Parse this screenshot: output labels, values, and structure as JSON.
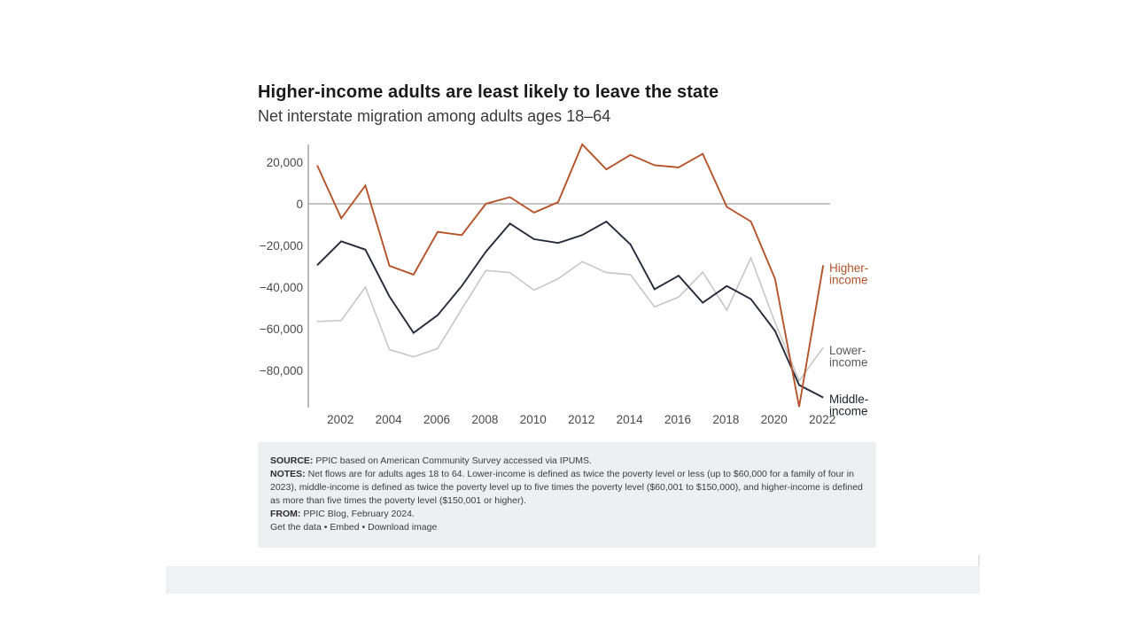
{
  "chart_data": {
    "type": "line",
    "title": "Higher-income adults are least likely to leave the state",
    "subtitle": "Net interstate migration among adults ages 18–64",
    "xlabel": "",
    "ylabel": "",
    "x": [
      2001,
      2002,
      2003,
      2004,
      2005,
      2006,
      2007,
      2008,
      2009,
      2010,
      2011,
      2012,
      2013,
      2014,
      2015,
      2016,
      2017,
      2018,
      2019,
      2020,
      2021,
      2022
    ],
    "x_ticks": [
      "2002",
      "2004",
      "2006",
      "2008",
      "2010",
      "2012",
      "2014",
      "2016",
      "2018",
      "2020",
      "2022"
    ],
    "y_ticks": [
      "20,000",
      "0",
      "−20,000",
      "−40,000",
      "−60,000",
      "−80,000"
    ],
    "y_tick_values": [
      20000,
      0,
      -20000,
      -40000,
      -60000,
      -80000
    ],
    "ylim": [
      -98000,
      29000
    ],
    "grid": false,
    "zero_line": true,
    "series": [
      {
        "name": "Higher-income",
        "color": "#b5532b",
        "values": [
          18500,
          -7000,
          8800,
          -29800,
          -34000,
          -13500,
          -15000,
          0,
          3200,
          -4200,
          800,
          28500,
          16500,
          23500,
          18500,
          17500,
          24000,
          -1500,
          -8500,
          -36000,
          -97500,
          -29500
        ]
      },
      {
        "name": "Lower-income",
        "color": "#c6c6c6",
        "values": [
          -56500,
          -56000,
          -40000,
          -70000,
          -73500,
          -69500,
          -50500,
          -32000,
          -33000,
          -41500,
          -36000,
          -27800,
          -33000,
          -34000,
          -49500,
          -44800,
          -32800,
          -51000,
          -26000,
          -57000,
          -85000,
          -69000
        ]
      },
      {
        "name": "Middle-income",
        "color": "#252a3a",
        "values": [
          -29500,
          -18000,
          -22000,
          -44500,
          -62000,
          -53500,
          -39500,
          -23000,
          -9500,
          -17000,
          -18800,
          -15000,
          -8500,
          -19500,
          -41000,
          -34500,
          -47500,
          -39500,
          -45800,
          -61000,
          -87000,
          -93000
        ]
      }
    ]
  },
  "notes": {
    "source_label": "SOURCE:",
    "source_text": "PPIC based on American Community Survey accessed via IPUMS.",
    "notes_label": "NOTES:",
    "notes_text": "Net flows are for adults ages 18 to 64. Lower-income is defined as twice the poverty level or less (up to $60,000 for a family of four in 2023), middle-income is defined as twice the poverty level up to five times the poverty level ($60,001 to $150,000), and higher-income is defined as more than five times the poverty level ($150,001 or higher).",
    "from_label": "FROM:",
    "from_text": "PPIC Blog, February 2024.",
    "link_data": "Get the data",
    "link_embed": "Embed",
    "link_download": "Download image",
    "separator": " • "
  }
}
